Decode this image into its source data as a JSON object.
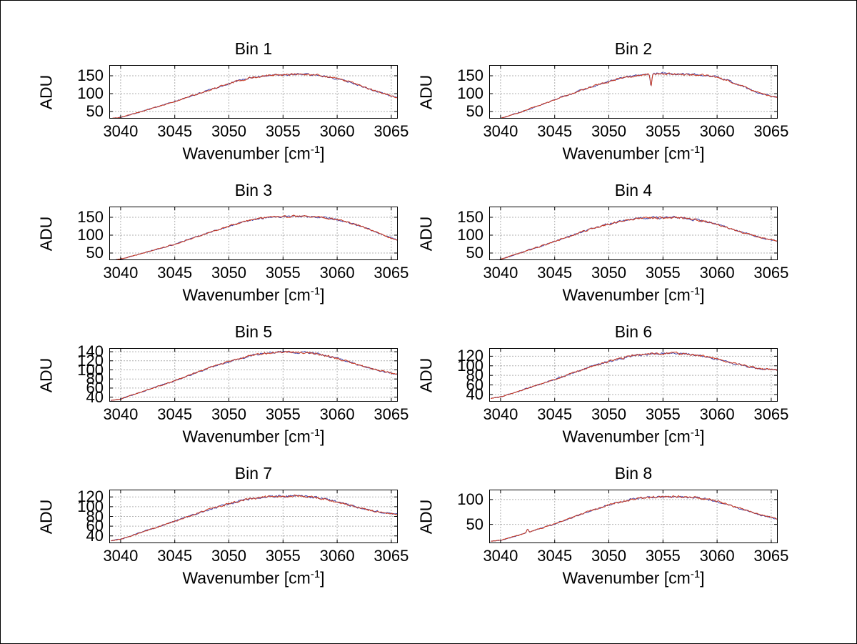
{
  "figure": {
    "background": "#ffffff",
    "border_color": "#000000"
  },
  "colors": {
    "line_primary": "#cc3a1e",
    "line_secondary": "#4444aa",
    "grid": "#606060",
    "axis": "#000000",
    "text": "#000000"
  },
  "chart_data": {
    "type": "line",
    "ylabel": "ADU",
    "xlabel": {
      "prefix": "Wavenumber [cm",
      "sup": "-1",
      "suffix": "]"
    },
    "grid": "dotted",
    "legend": "none",
    "xticks": [
      3040,
      3045,
      3050,
      3055,
      3060,
      3065
    ],
    "xlim": [
      3038.95,
      3065.6
    ],
    "series_note": "two overlapping traces per panel (dark blue under, red-orange over)",
    "bins": [
      {
        "title": "Bin 1",
        "yticks": [
          50,
          100,
          150
        ],
        "ylim": [
          30,
          180
        ],
        "noise": 2.2,
        "anchors": [
          [
            3039.1,
            30
          ],
          [
            3040,
            34
          ],
          [
            3041,
            42
          ],
          [
            3042,
            51
          ],
          [
            3043,
            60
          ],
          [
            3044,
            69
          ],
          [
            3045,
            78
          ],
          [
            3046,
            88
          ],
          [
            3047,
            98
          ],
          [
            3048,
            108
          ],
          [
            3049,
            118
          ],
          [
            3050,
            128
          ],
          [
            3051,
            137
          ],
          [
            3052,
            144
          ],
          [
            3053,
            149
          ],
          [
            3054,
            152
          ],
          [
            3055,
            153
          ],
          [
            3056,
            154
          ],
          [
            3057,
            154
          ],
          [
            3058,
            152
          ],
          [
            3059,
            148
          ],
          [
            3060,
            142
          ],
          [
            3061,
            134
          ],
          [
            3062,
            124
          ],
          [
            3063,
            113
          ],
          [
            3064,
            103
          ],
          [
            3065,
            94
          ],
          [
            3065.6,
            89
          ]
        ]
      },
      {
        "title": "Bin 2",
        "yticks": [
          50,
          100,
          150
        ],
        "ylim": [
          30,
          180
        ],
        "noise": 2.2,
        "spikes": [
          {
            "x": 3053.9,
            "dy": -32,
            "w": 0.1
          }
        ],
        "anchors": [
          [
            3039.1,
            27
          ],
          [
            3040,
            31
          ],
          [
            3041,
            40
          ],
          [
            3042,
            50
          ],
          [
            3043,
            61
          ],
          [
            3044,
            72
          ],
          [
            3045,
            83
          ],
          [
            3046,
            94
          ],
          [
            3047,
            105
          ],
          [
            3048,
            115
          ],
          [
            3049,
            125
          ],
          [
            3050,
            134
          ],
          [
            3051,
            142
          ],
          [
            3052,
            148
          ],
          [
            3053,
            152
          ],
          [
            3054,
            155
          ],
          [
            3055,
            156
          ],
          [
            3056,
            155
          ],
          [
            3057,
            154
          ],
          [
            3058,
            153
          ],
          [
            3059,
            151
          ],
          [
            3060,
            146
          ],
          [
            3061,
            137
          ],
          [
            3062,
            125
          ],
          [
            3063,
            112
          ],
          [
            3064,
            101
          ],
          [
            3065,
            93
          ],
          [
            3065.6,
            90
          ]
        ]
      },
      {
        "title": "Bin 3",
        "yticks": [
          50,
          100,
          150
        ],
        "ylim": [
          30,
          180
        ],
        "noise": 2.0,
        "anchors": [
          [
            3039.1,
            29
          ],
          [
            3040,
            33
          ],
          [
            3041,
            41
          ],
          [
            3042,
            49
          ],
          [
            3043,
            58
          ],
          [
            3044,
            66
          ],
          [
            3045,
            75
          ],
          [
            3046,
            85
          ],
          [
            3047,
            95
          ],
          [
            3048,
            105
          ],
          [
            3049,
            115
          ],
          [
            3050,
            125
          ],
          [
            3051,
            134
          ],
          [
            3052,
            142
          ],
          [
            3053,
            148
          ],
          [
            3054,
            151
          ],
          [
            3055,
            152
          ],
          [
            3056,
            153
          ],
          [
            3057,
            152
          ],
          [
            3058,
            151
          ],
          [
            3059,
            148
          ],
          [
            3060,
            143
          ],
          [
            3061,
            136
          ],
          [
            3062,
            127
          ],
          [
            3063,
            116
          ],
          [
            3064,
            104
          ],
          [
            3065,
            92
          ],
          [
            3065.6,
            86
          ]
        ]
      },
      {
        "title": "Bin 4",
        "yticks": [
          50,
          100,
          150
        ],
        "ylim": [
          30,
          180
        ],
        "noise": 2.6,
        "anchors": [
          [
            3039.1,
            28
          ],
          [
            3040,
            32
          ],
          [
            3041,
            42
          ],
          [
            3042,
            52
          ],
          [
            3043,
            62
          ],
          [
            3044,
            72
          ],
          [
            3045,
            82
          ],
          [
            3046,
            93
          ],
          [
            3047,
            104
          ],
          [
            3048,
            114
          ],
          [
            3049,
            123
          ],
          [
            3050,
            131
          ],
          [
            3051,
            138
          ],
          [
            3052,
            144
          ],
          [
            3053,
            147
          ],
          [
            3054,
            148
          ],
          [
            3055,
            149
          ],
          [
            3056,
            150
          ],
          [
            3057,
            147
          ],
          [
            3058,
            143
          ],
          [
            3059,
            138
          ],
          [
            3060,
            130
          ],
          [
            3061,
            121
          ],
          [
            3062,
            111
          ],
          [
            3063,
            102
          ],
          [
            3064,
            93
          ],
          [
            3065,
            87
          ],
          [
            3065.6,
            84
          ]
        ]
      },
      {
        "title": "Bin 5",
        "yticks": [
          40,
          60,
          80,
          100,
          120,
          140
        ],
        "ylim": [
          30,
          148
        ],
        "noise": 1.8,
        "anchors": [
          [
            3039.1,
            33
          ],
          [
            3040,
            36
          ],
          [
            3041,
            44
          ],
          [
            3042,
            52
          ],
          [
            3043,
            60
          ],
          [
            3044,
            68
          ],
          [
            3045,
            76
          ],
          [
            3046,
            85
          ],
          [
            3047,
            94
          ],
          [
            3048,
            103
          ],
          [
            3049,
            111
          ],
          [
            3050,
            118
          ],
          [
            3051,
            125
          ],
          [
            3052,
            131
          ],
          [
            3053,
            136
          ],
          [
            3054,
            138
          ],
          [
            3055,
            139
          ],
          [
            3056,
            139
          ],
          [
            3057,
            138
          ],
          [
            3058,
            136
          ],
          [
            3059,
            131
          ],
          [
            3060,
            125
          ],
          [
            3061,
            118
          ],
          [
            3062,
            111
          ],
          [
            3063,
            104
          ],
          [
            3064,
            98
          ],
          [
            3065,
            93
          ],
          [
            3065.6,
            90
          ]
        ]
      },
      {
        "title": "Bin 6",
        "yticks": [
          40,
          60,
          80,
          100,
          120
        ],
        "ylim": [
          25,
          137
        ],
        "noise": 1.8,
        "anchors": [
          [
            3039.1,
            32
          ],
          [
            3040,
            35
          ],
          [
            3041,
            42
          ],
          [
            3042,
            49
          ],
          [
            3043,
            57
          ],
          [
            3044,
            64
          ],
          [
            3045,
            72
          ],
          [
            3046,
            80
          ],
          [
            3047,
            88
          ],
          [
            3048,
            96
          ],
          [
            3049,
            103
          ],
          [
            3050,
            109
          ],
          [
            3051,
            115
          ],
          [
            3052,
            120
          ],
          [
            3053,
            123
          ],
          [
            3054,
            125
          ],
          [
            3055,
            126
          ],
          [
            3056,
            126
          ],
          [
            3057,
            125
          ],
          [
            3058,
            123
          ],
          [
            3059,
            119
          ],
          [
            3060,
            114
          ],
          [
            3061,
            108
          ],
          [
            3062,
            103
          ],
          [
            3063,
            98
          ],
          [
            3064,
            94
          ],
          [
            3065,
            92
          ],
          [
            3065.6,
            91
          ]
        ]
      },
      {
        "title": "Bin 7",
        "yticks": [
          40,
          60,
          80,
          100,
          120
        ],
        "ylim": [
          25,
          135
        ],
        "noise": 1.8,
        "anchors": [
          [
            3039.1,
            30
          ],
          [
            3040,
            33
          ],
          [
            3041,
            40
          ],
          [
            3042,
            48
          ],
          [
            3043,
            55
          ],
          [
            3044,
            63
          ],
          [
            3045,
            70
          ],
          [
            3046,
            78
          ],
          [
            3047,
            86
          ],
          [
            3048,
            93
          ],
          [
            3049,
            100
          ],
          [
            3050,
            106
          ],
          [
            3051,
            112
          ],
          [
            3052,
            116
          ],
          [
            3053,
            119
          ],
          [
            3054,
            121
          ],
          [
            3055,
            122
          ],
          [
            3056,
            122
          ],
          [
            3057,
            121
          ],
          [
            3058,
            119
          ],
          [
            3059,
            115
          ],
          [
            3060,
            110
          ],
          [
            3061,
            104
          ],
          [
            3062,
            98
          ],
          [
            3063,
            93
          ],
          [
            3064,
            89
          ],
          [
            3065,
            86
          ],
          [
            3065.6,
            84
          ]
        ]
      },
      {
        "title": "Bin 8",
        "yticks": [
          50,
          100
        ],
        "ylim": [
          12,
          120
        ],
        "noise": 1.6,
        "spikes": [
          {
            "x": 3042.5,
            "dy": 7,
            "w": 0.12
          }
        ],
        "anchors": [
          [
            3039.1,
            16
          ],
          [
            3040,
            18
          ],
          [
            3041,
            24
          ],
          [
            3042,
            30
          ],
          [
            3043,
            37
          ],
          [
            3044,
            44
          ],
          [
            3045,
            51
          ],
          [
            3046,
            59
          ],
          [
            3047,
            67
          ],
          [
            3048,
            75
          ],
          [
            3049,
            82
          ],
          [
            3050,
            89
          ],
          [
            3051,
            95
          ],
          [
            3052,
            100
          ],
          [
            3053,
            103
          ],
          [
            3054,
            105
          ],
          [
            3055,
            106
          ],
          [
            3056,
            106
          ],
          [
            3057,
            105
          ],
          [
            3058,
            104
          ],
          [
            3059,
            101
          ],
          [
            3060,
            96
          ],
          [
            3061,
            90
          ],
          [
            3062,
            83
          ],
          [
            3063,
            76
          ],
          [
            3064,
            69
          ],
          [
            3065,
            64
          ],
          [
            3065.6,
            61
          ]
        ]
      }
    ]
  }
}
